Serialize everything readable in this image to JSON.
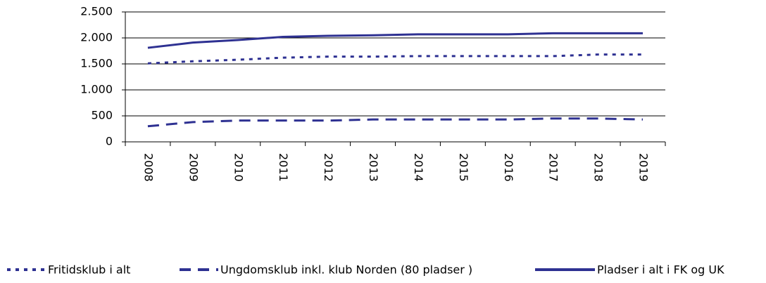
{
  "chart_data": {
    "type": "line",
    "categories": [
      "2008",
      "2009",
      "2010",
      "2011",
      "2012",
      "2013",
      "2014",
      "2015",
      "2016",
      "2017",
      "2018",
      "2019"
    ],
    "series": [
      {
        "name": "Fritidsklub i alt",
        "color": "#2e3192",
        "dash": "dotted",
        "values": [
          1510,
          1550,
          1580,
          1620,
          1640,
          1640,
          1650,
          1650,
          1650,
          1650,
          1680,
          1680
        ]
      },
      {
        "name": "Ungdomsklub inkl. klub Norden (80 pladser )",
        "color": "#2e3192",
        "dash": "dashed",
        "values": [
          300,
          380,
          410,
          410,
          410,
          430,
          430,
          430,
          430,
          450,
          450,
          430
        ]
      },
      {
        "name": "Pladser i alt i FK og UK",
        "color": "#2e3192",
        "dash": "solid",
        "values": [
          1810,
          1910,
          1960,
          2020,
          2040,
          2050,
          2070,
          2070,
          2070,
          2090,
          2090,
          2090
        ]
      }
    ],
    "ylim": [
      0,
      2500
    ],
    "yticks": [
      0,
      500,
      {
        "value": 1000,
        "label": "1.000"
      },
      {
        "value": 1500,
        "label": "1.500"
      },
      {
        "value": 2000,
        "label": "2.000"
      },
      {
        "value": 2500,
        "label": "2.500"
      }
    ],
    "grid": true,
    "legend": "bottom"
  }
}
